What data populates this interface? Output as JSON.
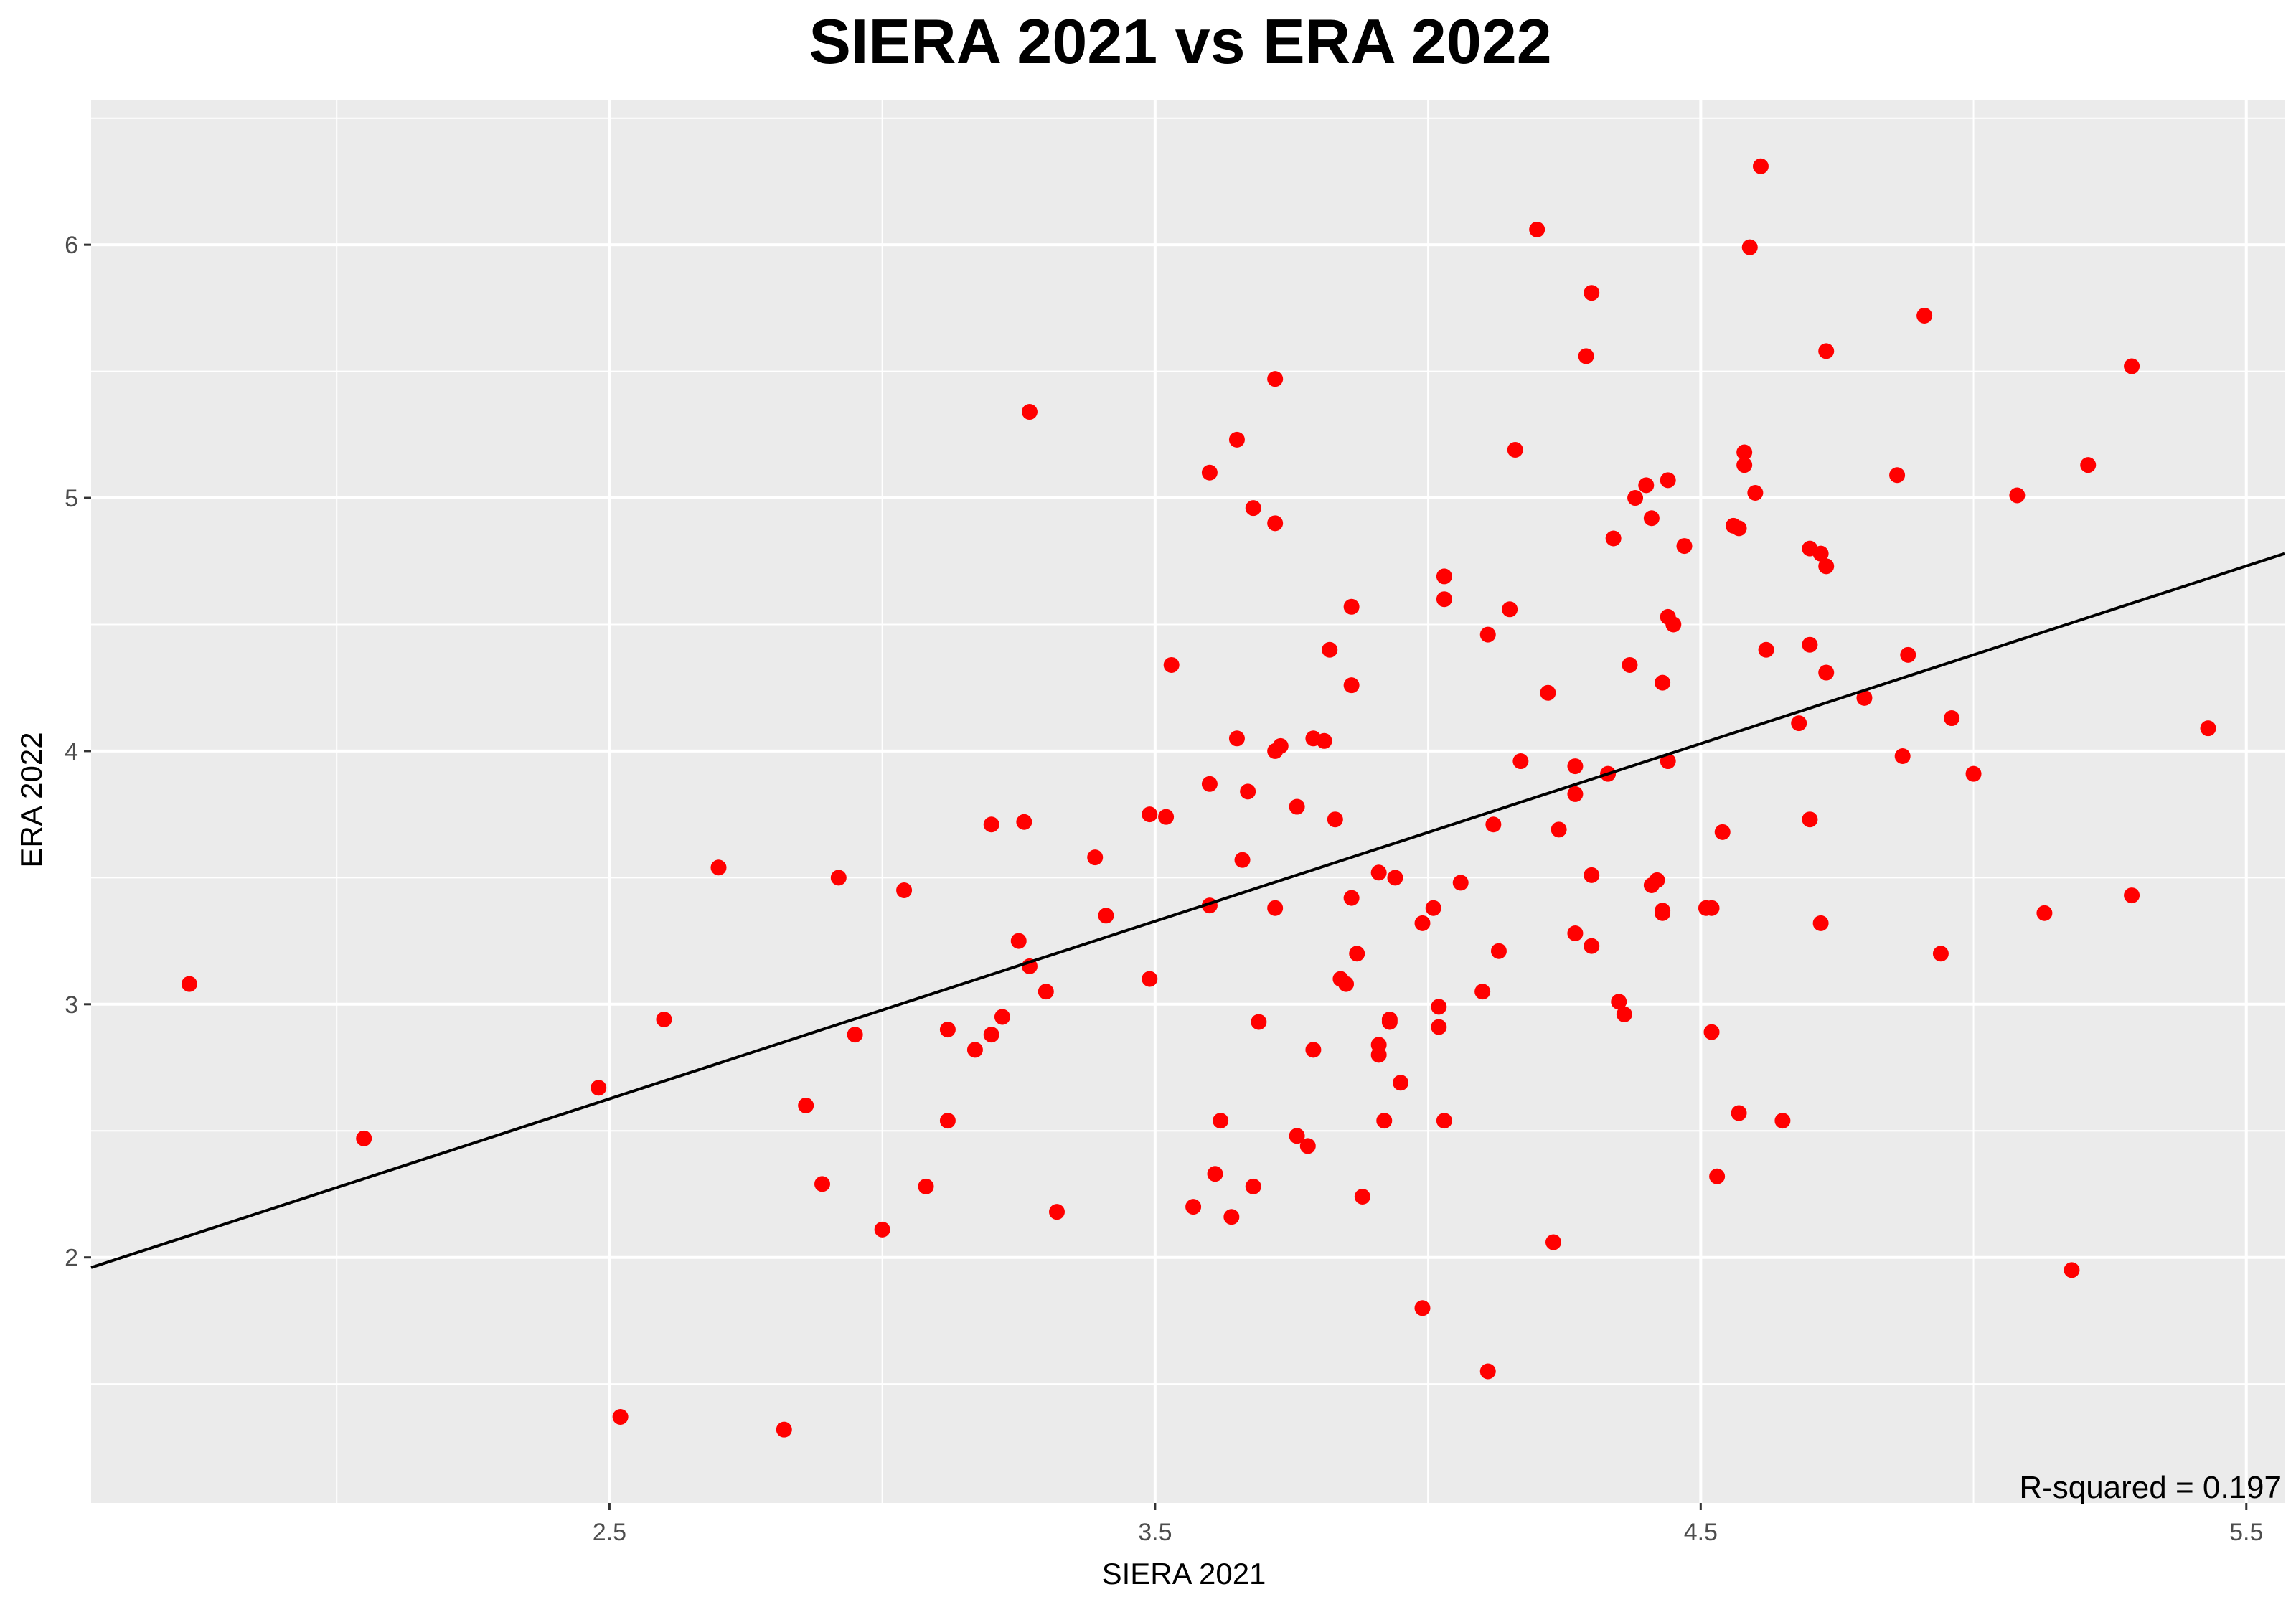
{
  "chart_data": {
    "type": "scatter",
    "title": "SIERA 2021 vs ERA 2022",
    "xlabel": "SIERA 2021",
    "ylabel": "ERA 2022",
    "xlim": [
      1.55,
      5.57
    ],
    "ylim": [
      1.03,
      6.57
    ],
    "x_ticks": [
      2.5,
      3.5,
      4.5,
      5.5
    ],
    "x_tick_labels": [
      "2.5",
      "3.5",
      "4.5",
      "5.5"
    ],
    "y_ticks": [
      2,
      3,
      4,
      5,
      6
    ],
    "y_tick_labels": [
      "2",
      "3",
      "4",
      "5",
      "6"
    ],
    "grid": true,
    "point_color": "#ff0000",
    "panel_color": "#ebebeb",
    "grid_color": "#ffffff",
    "trend_line": {
      "x": [
        1.55,
        5.57
      ],
      "y": [
        1.96,
        4.78
      ],
      "color": "#000000"
    },
    "annotation": "R-squared = 0.197",
    "points": [
      [
        1.73,
        3.08
      ],
      [
        2.05,
        2.47
      ],
      [
        2.48,
        2.67
      ],
      [
        2.52,
        1.37
      ],
      [
        2.6,
        2.94
      ],
      [
        2.7,
        3.54
      ],
      [
        2.82,
        1.32
      ],
      [
        2.86,
        2.6
      ],
      [
        2.89,
        2.29
      ],
      [
        2.92,
        3.5
      ],
      [
        2.95,
        2.88
      ],
      [
        3.0,
        2.11
      ],
      [
        3.04,
        3.45
      ],
      [
        3.08,
        2.28
      ],
      [
        3.12,
        2.9
      ],
      [
        3.12,
        2.54
      ],
      [
        3.17,
        2.82
      ],
      [
        3.2,
        3.71
      ],
      [
        3.2,
        2.88
      ],
      [
        3.22,
        2.95
      ],
      [
        3.25,
        3.25
      ],
      [
        3.26,
        3.72
      ],
      [
        3.27,
        5.34
      ],
      [
        3.27,
        3.15
      ],
      [
        3.3,
        3.05
      ],
      [
        3.32,
        2.18
      ],
      [
        3.39,
        3.58
      ],
      [
        3.41,
        3.35
      ],
      [
        3.49,
        3.75
      ],
      [
        3.49,
        3.1
      ],
      [
        3.52,
        3.74
      ],
      [
        3.53,
        4.34
      ],
      [
        3.57,
        2.2
      ],
      [
        3.6,
        5.1
      ],
      [
        3.6,
        3.87
      ],
      [
        3.6,
        3.39
      ],
      [
        3.61,
        2.33
      ],
      [
        3.62,
        2.54
      ],
      [
        3.64,
        2.16
      ],
      [
        3.65,
        5.23
      ],
      [
        3.65,
        4.05
      ],
      [
        3.66,
        3.57
      ],
      [
        3.67,
        3.84
      ],
      [
        3.68,
        4.96
      ],
      [
        3.68,
        2.28
      ],
      [
        3.69,
        2.93
      ],
      [
        3.72,
        5.47
      ],
      [
        3.72,
        4.9
      ],
      [
        3.72,
        4.0
      ],
      [
        3.72,
        3.38
      ],
      [
        3.73,
        4.02
      ],
      [
        3.76,
        3.78
      ],
      [
        3.76,
        2.48
      ],
      [
        3.78,
        2.44
      ],
      [
        3.79,
        4.05
      ],
      [
        3.79,
        2.82
      ],
      [
        3.81,
        4.04
      ],
      [
        3.82,
        4.4
      ],
      [
        3.83,
        3.73
      ],
      [
        3.84,
        3.1
      ],
      [
        3.85,
        3.08
      ],
      [
        3.86,
        4.57
      ],
      [
        3.86,
        4.26
      ],
      [
        3.86,
        3.42
      ],
      [
        3.87,
        3.2
      ],
      [
        3.88,
        2.24
      ],
      [
        3.91,
        3.52
      ],
      [
        3.91,
        2.84
      ],
      [
        3.91,
        2.8
      ],
      [
        3.92,
        2.54
      ],
      [
        3.93,
        2.94
      ],
      [
        3.93,
        2.93
      ],
      [
        3.94,
        3.5
      ],
      [
        3.95,
        2.69
      ],
      [
        3.99,
        3.32
      ],
      [
        3.99,
        1.8
      ],
      [
        4.01,
        3.38
      ],
      [
        4.02,
        2.99
      ],
      [
        4.02,
        2.91
      ],
      [
        4.03,
        4.69
      ],
      [
        4.03,
        4.6
      ],
      [
        4.03,
        2.54
      ],
      [
        4.06,
        3.48
      ],
      [
        4.1,
        3.05
      ],
      [
        4.11,
        1.55
      ],
      [
        4.11,
        4.46
      ],
      [
        4.12,
        3.71
      ],
      [
        4.13,
        3.21
      ],
      [
        4.15,
        4.56
      ],
      [
        4.16,
        5.19
      ],
      [
        4.17,
        3.96
      ],
      [
        4.2,
        6.06
      ],
      [
        4.22,
        4.23
      ],
      [
        4.23,
        2.06
      ],
      [
        4.24,
        3.69
      ],
      [
        4.27,
        3.94
      ],
      [
        4.27,
        3.83
      ],
      [
        4.27,
        3.28
      ],
      [
        4.29,
        5.56
      ],
      [
        4.3,
        5.81
      ],
      [
        4.3,
        3.51
      ],
      [
        4.3,
        3.23
      ],
      [
        4.33,
        3.91
      ],
      [
        4.34,
        4.84
      ],
      [
        4.35,
        3.01
      ],
      [
        4.36,
        2.96
      ],
      [
        4.37,
        4.34
      ],
      [
        4.38,
        5.0
      ],
      [
        4.4,
        5.05
      ],
      [
        4.41,
        4.92
      ],
      [
        4.41,
        3.47
      ],
      [
        4.42,
        3.49
      ],
      [
        4.43,
        4.27
      ],
      [
        4.43,
        3.37
      ],
      [
        4.43,
        3.36
      ],
      [
        4.44,
        5.07
      ],
      [
        4.44,
        4.53
      ],
      [
        4.44,
        3.96
      ],
      [
        4.45,
        4.5
      ],
      [
        4.47,
        4.81
      ],
      [
        4.51,
        3.38
      ],
      [
        4.52,
        3.38
      ],
      [
        4.52,
        2.89
      ],
      [
        4.53,
        2.32
      ],
      [
        4.54,
        3.68
      ],
      [
        4.56,
        4.89
      ],
      [
        4.57,
        4.88
      ],
      [
        4.57,
        2.57
      ],
      [
        4.58,
        5.18
      ],
      [
        4.58,
        5.13
      ],
      [
        4.59,
        5.99
      ],
      [
        4.6,
        5.02
      ],
      [
        4.61,
        6.31
      ],
      [
        4.62,
        4.4
      ],
      [
        4.65,
        2.54
      ],
      [
        4.68,
        4.11
      ],
      [
        4.7,
        4.8
      ],
      [
        4.7,
        4.42
      ],
      [
        4.7,
        3.73
      ],
      [
        4.72,
        4.78
      ],
      [
        4.72,
        3.32
      ],
      [
        4.73,
        4.73
      ],
      [
        4.73,
        4.31
      ],
      [
        4.73,
        5.58
      ],
      [
        4.8,
        4.21
      ],
      [
        4.86,
        5.09
      ],
      [
        4.87,
        3.98
      ],
      [
        4.88,
        4.38
      ],
      [
        4.91,
        5.72
      ],
      [
        4.94,
        3.2
      ],
      [
        4.96,
        4.13
      ],
      [
        5.0,
        3.91
      ],
      [
        5.08,
        5.01
      ],
      [
        5.13,
        3.36
      ],
      [
        5.18,
        1.95
      ],
      [
        5.21,
        5.13
      ],
      [
        5.29,
        5.52
      ],
      [
        5.29,
        3.43
      ],
      [
        5.43,
        4.09
      ]
    ]
  }
}
